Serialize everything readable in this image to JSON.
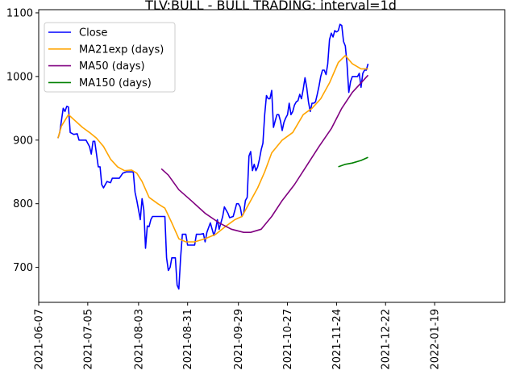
{
  "chart_data": {
    "type": "line",
    "title": "TLV:BULL - BULL TRADING: interval=1d",
    "xlabel": "",
    "ylabel": "",
    "xlim": [
      "2021-06-07",
      "2022-02-28"
    ],
    "ylim": [
      645,
      1105
    ],
    "y_ticks": [
      700,
      800,
      900,
      1000,
      1100
    ],
    "x_ticks": [
      "2021-06-07",
      "2021-07-05",
      "2021-08-03",
      "2021-08-31",
      "2021-09-29",
      "2021-10-27",
      "2021-11-24",
      "2021-12-22",
      "2022-01-19"
    ],
    "grid": false,
    "legend": "top-left",
    "series": [
      {
        "name": "Close",
        "color": "#0000ff",
        "points": [
          [
            "2021-06-18",
            903
          ],
          [
            "2021-06-19",
            912
          ],
          [
            "2021-06-21",
            950
          ],
          [
            "2021-06-22",
            945
          ],
          [
            "2021-06-23",
            953
          ],
          [
            "2021-06-24",
            952
          ],
          [
            "2021-06-25",
            912
          ],
          [
            "2021-06-27",
            909
          ],
          [
            "2021-06-29",
            910
          ],
          [
            "2021-06-30",
            900
          ],
          [
            "2021-07-02",
            900
          ],
          [
            "2021-07-04",
            900
          ],
          [
            "2021-07-06",
            890
          ],
          [
            "2021-07-07",
            878
          ],
          [
            "2021-07-08",
            898
          ],
          [
            "2021-07-09",
            898
          ],
          [
            "2021-07-11",
            858
          ],
          [
            "2021-07-12",
            858
          ],
          [
            "2021-07-13",
            830
          ],
          [
            "2021-07-14",
            825
          ],
          [
            "2021-07-16",
            835
          ],
          [
            "2021-07-18",
            833
          ],
          [
            "2021-07-19",
            840
          ],
          [
            "2021-07-21",
            840
          ],
          [
            "2021-07-23",
            840
          ],
          [
            "2021-07-25",
            848
          ],
          [
            "2021-07-27",
            850
          ],
          [
            "2021-07-29",
            850
          ],
          [
            "2021-07-31",
            850
          ],
          [
            "2021-08-01",
            818
          ],
          [
            "2021-08-02",
            805
          ],
          [
            "2021-08-03",
            790
          ],
          [
            "2021-08-04",
            775
          ],
          [
            "2021-08-05",
            808
          ],
          [
            "2021-08-06",
            790
          ],
          [
            "2021-08-07",
            730
          ],
          [
            "2021-08-08",
            765
          ],
          [
            "2021-08-09",
            764
          ],
          [
            "2021-08-10",
            775
          ],
          [
            "2021-08-11",
            780
          ],
          [
            "2021-08-13",
            780
          ],
          [
            "2021-08-15",
            780
          ],
          [
            "2021-08-18",
            780
          ],
          [
            "2021-08-19",
            715
          ],
          [
            "2021-08-20",
            695
          ],
          [
            "2021-08-21",
            700
          ],
          [
            "2021-08-22",
            715
          ],
          [
            "2021-08-24",
            715
          ],
          [
            "2021-08-25",
            672
          ],
          [
            "2021-08-26",
            666
          ],
          [
            "2021-08-27",
            715
          ],
          [
            "2021-08-28",
            752
          ],
          [
            "2021-08-30",
            752
          ],
          [
            "2021-08-31",
            735
          ],
          [
            "2021-09-02",
            735
          ],
          [
            "2021-09-04",
            735
          ],
          [
            "2021-09-05",
            752
          ],
          [
            "2021-09-07",
            752
          ],
          [
            "2021-09-09",
            753
          ],
          [
            "2021-09-10",
            740
          ],
          [
            "2021-09-11",
            755
          ],
          [
            "2021-09-13",
            770
          ],
          [
            "2021-09-14",
            760
          ],
          [
            "2021-09-15",
            750
          ],
          [
            "2021-09-16",
            760
          ],
          [
            "2021-09-17",
            775
          ],
          [
            "2021-09-18",
            760
          ],
          [
            "2021-09-20",
            780
          ],
          [
            "2021-09-21",
            795
          ],
          [
            "2021-09-22",
            790
          ],
          [
            "2021-09-23",
            785
          ],
          [
            "2021-09-24",
            778
          ],
          [
            "2021-09-26",
            780
          ],
          [
            "2021-09-27",
            790
          ],
          [
            "2021-09-28",
            800
          ],
          [
            "2021-09-29",
            800
          ],
          [
            "2021-09-30",
            795
          ],
          [
            "2021-10-01",
            780
          ],
          [
            "2021-10-02",
            785
          ],
          [
            "2021-10-03",
            805
          ],
          [
            "2021-10-04",
            810
          ],
          [
            "2021-10-05",
            875
          ],
          [
            "2021-10-06",
            882
          ],
          [
            "2021-10-07",
            852
          ],
          [
            "2021-10-08",
            862
          ],
          [
            "2021-10-09",
            852
          ],
          [
            "2021-10-10",
            858
          ],
          [
            "2021-10-11",
            870
          ],
          [
            "2021-10-12",
            885
          ],
          [
            "2021-10-13",
            895
          ],
          [
            "2021-10-14",
            940
          ],
          [
            "2021-10-15",
            970
          ],
          [
            "2021-10-16",
            965
          ],
          [
            "2021-10-17",
            965
          ],
          [
            "2021-10-18",
            978
          ],
          [
            "2021-10-19",
            920
          ],
          [
            "2021-10-20",
            930
          ],
          [
            "2021-10-21",
            940
          ],
          [
            "2021-10-22",
            940
          ],
          [
            "2021-10-23",
            930
          ],
          [
            "2021-10-24",
            915
          ],
          [
            "2021-10-25",
            928
          ],
          [
            "2021-10-26",
            935
          ],
          [
            "2021-10-27",
            940
          ],
          [
            "2021-10-28",
            958
          ],
          [
            "2021-10-29",
            940
          ],
          [
            "2021-10-30",
            945
          ],
          [
            "2021-10-31",
            955
          ],
          [
            "2021-11-01",
            960
          ],
          [
            "2021-11-02",
            962
          ],
          [
            "2021-11-03",
            972
          ],
          [
            "2021-11-04",
            965
          ],
          [
            "2021-11-05",
            980
          ],
          [
            "2021-11-06",
            998
          ],
          [
            "2021-11-07",
            982
          ],
          [
            "2021-11-08",
            960
          ],
          [
            "2021-11-09",
            945
          ],
          [
            "2021-11-10",
            958
          ],
          [
            "2021-11-11",
            958
          ],
          [
            "2021-11-12",
            960
          ],
          [
            "2021-11-13",
            972
          ],
          [
            "2021-11-14",
            985
          ],
          [
            "2021-11-15",
            1000
          ],
          [
            "2021-11-16",
            1010
          ],
          [
            "2021-11-17",
            1010
          ],
          [
            "2021-11-18",
            1003
          ],
          [
            "2021-11-19",
            1020
          ],
          [
            "2021-11-20",
            1058
          ],
          [
            "2021-11-21",
            1068
          ],
          [
            "2021-11-22",
            1062
          ],
          [
            "2021-11-23",
            1072
          ],
          [
            "2021-11-24",
            1070
          ],
          [
            "2021-11-25",
            1072
          ],
          [
            "2021-11-26",
            1082
          ],
          [
            "2021-11-27",
            1080
          ],
          [
            "2021-11-28",
            1055
          ],
          [
            "2021-11-29",
            1048
          ],
          [
            "2021-11-30",
            1020
          ],
          [
            "2021-12-01",
            975
          ],
          [
            "2021-12-02",
            992
          ],
          [
            "2021-12-03",
            1000
          ],
          [
            "2021-12-04",
            1000
          ],
          [
            "2021-12-05",
            1000
          ],
          [
            "2021-12-06",
            1000
          ],
          [
            "2021-12-07",
            1005
          ],
          [
            "2021-12-08",
            983
          ],
          [
            "2021-12-09",
            1005
          ],
          [
            "2021-12-10",
            1010
          ],
          [
            "2021-12-11",
            1010
          ],
          [
            "2021-12-12",
            1020
          ]
        ]
      },
      {
        "name": "MA21exp (days)",
        "color": "#ffa500",
        "points": [
          [
            "2021-06-18",
            903
          ],
          [
            "2021-06-20",
            922
          ],
          [
            "2021-06-24",
            940
          ],
          [
            "2021-06-28",
            930
          ],
          [
            "2021-07-02",
            920
          ],
          [
            "2021-07-06",
            912
          ],
          [
            "2021-07-10",
            903
          ],
          [
            "2021-07-14",
            890
          ],
          [
            "2021-07-18",
            870
          ],
          [
            "2021-07-22",
            858
          ],
          [
            "2021-07-26",
            852
          ],
          [
            "2021-07-30",
            853
          ],
          [
            "2021-08-02",
            848
          ],
          [
            "2021-08-05",
            835
          ],
          [
            "2021-08-09",
            810
          ],
          [
            "2021-08-14",
            800
          ],
          [
            "2021-08-18",
            793
          ],
          [
            "2021-08-22",
            770
          ],
          [
            "2021-08-26",
            745
          ],
          [
            "2021-08-30",
            740
          ],
          [
            "2021-09-04",
            740
          ],
          [
            "2021-09-10",
            745
          ],
          [
            "2021-09-16",
            752
          ],
          [
            "2021-09-22",
            765
          ],
          [
            "2021-09-27",
            775
          ],
          [
            "2021-10-01",
            780
          ],
          [
            "2021-10-05",
            800
          ],
          [
            "2021-10-10",
            825
          ],
          [
            "2021-10-14",
            850
          ],
          [
            "2021-10-18",
            880
          ],
          [
            "2021-10-24",
            900
          ],
          [
            "2021-10-30",
            912
          ],
          [
            "2021-11-05",
            940
          ],
          [
            "2021-11-10",
            950
          ],
          [
            "2021-11-15",
            965
          ],
          [
            "2021-11-20",
            990
          ],
          [
            "2021-11-25",
            1022
          ],
          [
            "2021-11-29",
            1033
          ],
          [
            "2021-12-03",
            1020
          ],
          [
            "2021-12-08",
            1012
          ],
          [
            "2021-12-12",
            1012
          ]
        ]
      },
      {
        "name": "MA50 (days)",
        "color": "#800080",
        "points": [
          [
            "2021-08-16",
            855
          ],
          [
            "2021-08-20",
            845
          ],
          [
            "2021-08-26",
            822
          ],
          [
            "2021-09-02",
            805
          ],
          [
            "2021-09-10",
            785
          ],
          [
            "2021-09-18",
            770
          ],
          [
            "2021-09-25",
            760
          ],
          [
            "2021-10-02",
            755
          ],
          [
            "2021-10-06",
            755
          ],
          [
            "2021-10-12",
            760
          ],
          [
            "2021-10-18",
            780
          ],
          [
            "2021-10-24",
            805
          ],
          [
            "2021-10-31",
            830
          ],
          [
            "2021-11-07",
            860
          ],
          [
            "2021-11-14",
            890
          ],
          [
            "2021-11-21",
            918
          ],
          [
            "2021-11-27",
            950
          ],
          [
            "2021-12-03",
            975
          ],
          [
            "2021-12-08",
            990
          ],
          [
            "2021-12-12",
            1002
          ]
        ]
      },
      {
        "name": "MA150 (days)",
        "color": "#008000",
        "points": [
          [
            "2021-11-25",
            858
          ],
          [
            "2021-11-29",
            862
          ],
          [
            "2021-12-03",
            864
          ],
          [
            "2021-12-08",
            868
          ],
          [
            "2021-12-12",
            873
          ]
        ]
      }
    ]
  }
}
